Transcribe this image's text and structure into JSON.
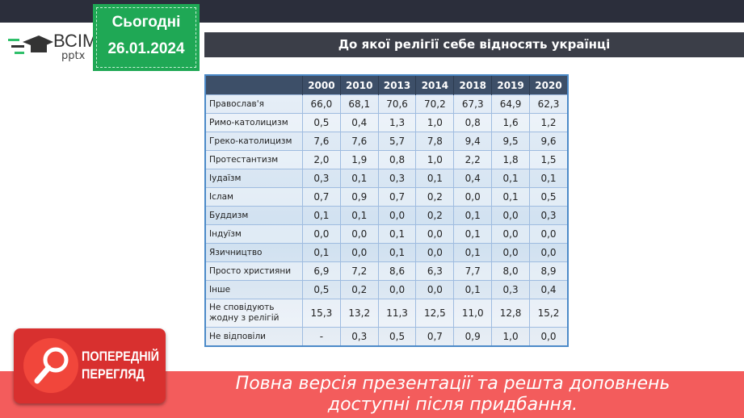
{
  "logo": {
    "brand": "ВСІМ",
    "sub": "pptx"
  },
  "date_box": {
    "label": "Сьогодні",
    "date": "26.01.2024"
  },
  "title": "До якої релігії себе відносять українці",
  "table": {
    "headers": [
      "",
      "2000",
      "2010",
      "2013",
      "2014",
      "2018",
      "2019",
      "2020"
    ],
    "rows": [
      [
        "Православ'я",
        "66,0",
        "68,1",
        "70,6",
        "70,2",
        "67,3",
        "64,9",
        "62,3"
      ],
      [
        "Римо-католицизм",
        "0,5",
        "0,4",
        "1,3",
        "1,0",
        "0,8",
        "1,6",
        "1,2"
      ],
      [
        "Греко-католицизм",
        "7,6",
        "7,6",
        "5,7",
        "7,8",
        "9,4",
        "9,5",
        "9,6"
      ],
      [
        "Протестантизм",
        "2,0",
        "1,9",
        "0,8",
        "1,0",
        "2,2",
        "1,8",
        "1,5"
      ],
      [
        "Іудаїзм",
        "0,3",
        "0,1",
        "0,3",
        "0,1",
        "0,4",
        "0,1",
        "0,1"
      ],
      [
        "Іслам",
        "0,7",
        "0,9",
        "0,7",
        "0,2",
        "0,0",
        "0,1",
        "0,5"
      ],
      [
        "Буддизм",
        "0,1",
        "0,1",
        "0,0",
        "0,2",
        "0,1",
        "0,0",
        "0,3"
      ],
      [
        "Індуїзм",
        "0,0",
        "0,0",
        "0,1",
        "0,0",
        "0,1",
        "0,0",
        "0,0"
      ],
      [
        "Язичництво",
        "0,1",
        "0,0",
        "0,1",
        "0,0",
        "0,1",
        "0,0",
        "0,0"
      ],
      [
        "Просто християни",
        "6,9",
        "7,2",
        "8,6",
        "6,3",
        "7,7",
        "8,0",
        "8,9"
      ],
      [
        "Інше",
        "0,5",
        "0,2",
        "0,0",
        "0,0",
        "0,1",
        "0,3",
        "0,4"
      ],
      [
        "Не сповідують жодну з релігій",
        "15,3",
        "13,2",
        "11,3",
        "12,5",
        "11,0",
        "12,8",
        "15,2"
      ],
      [
        "Не відповіли",
        "-",
        "0,3",
        "0,5",
        "0,7",
        "0,9",
        "1,0",
        "0,0"
      ]
    ]
  },
  "preview_badge": {
    "line1": "ПОПЕРЕДНІЙ",
    "line2": "ПЕРЕГЛЯД"
  },
  "banner": {
    "line1": "Повна версія презентації та решта доповнень",
    "line2": "доступні після придбання."
  },
  "colors": {
    "green": "#1fa855",
    "header": "#3d4f68",
    "banner": "#f25050"
  }
}
